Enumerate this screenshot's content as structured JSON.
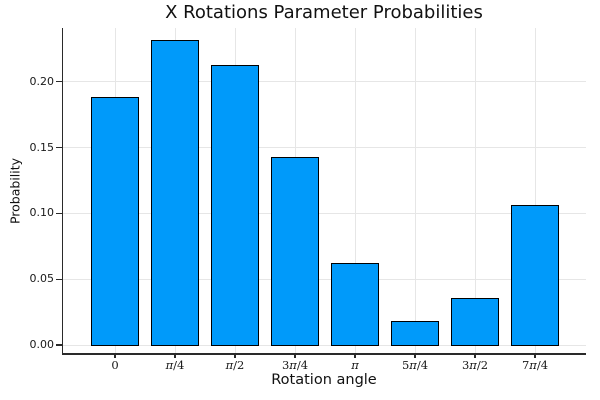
{
  "chart_data": {
    "type": "bar",
    "title": "X Rotations Parameter Probabilities",
    "xlabel": "Rotation angle",
    "ylabel": "Probability",
    "categories": [
      "0",
      "π/4",
      "π/2",
      "3π/4",
      "π",
      "5π/4",
      "3π/2",
      "7π/4"
    ],
    "values": [
      0.188,
      0.232,
      0.213,
      0.143,
      0.062,
      0.018,
      0.036,
      0.106
    ],
    "yticks": [
      0.0,
      0.05,
      0.1,
      0.15,
      0.2
    ],
    "ytick_labels": [
      "0.00",
      "0.05",
      "0.10",
      "0.15",
      "0.20"
    ],
    "ylim": [
      -0.007,
      0.241
    ],
    "grid": true,
    "legend": "none",
    "colors": {
      "bar_fill": "#009AFA",
      "bar_border": "#000000",
      "grid": "#e6e6e6",
      "axis": "#2a2a2a",
      "text": "#111111"
    }
  }
}
